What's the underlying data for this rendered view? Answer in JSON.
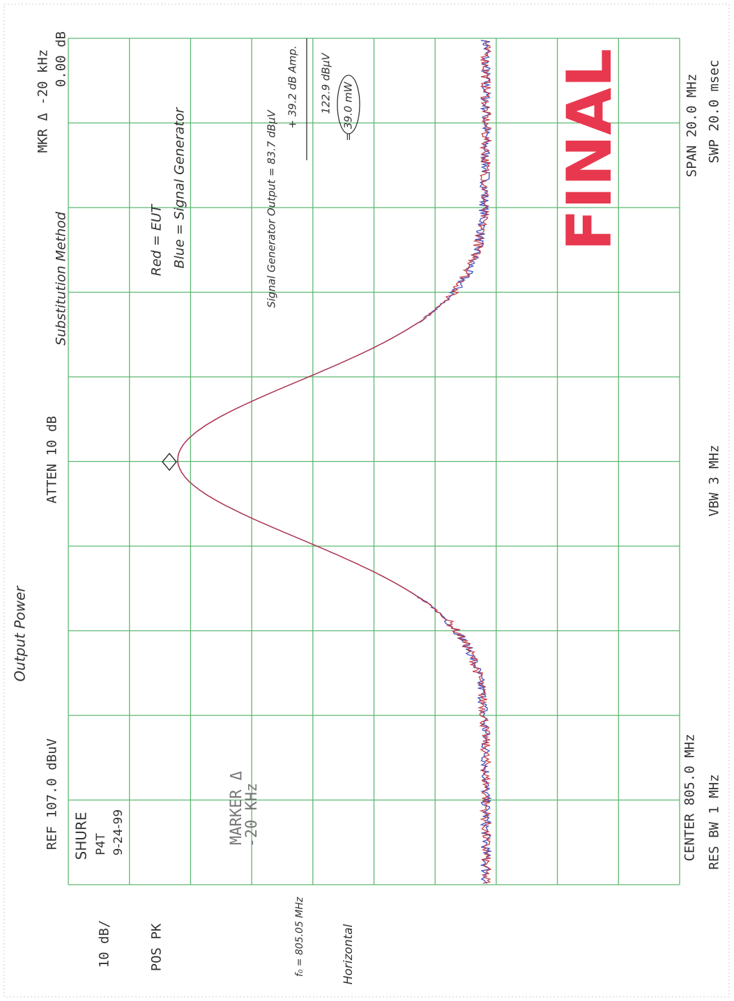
{
  "page_title": "Output Power",
  "instrument": {
    "ref": "REF 107.0 dBuV",
    "atten": "ATTEN 10 dB",
    "marker_readout": "MKR Δ -20 kHz",
    "marker_level": "0.00 dB",
    "scale": "10 dB/",
    "detector": "POS PK",
    "center": "CENTER 805.0 MHz",
    "res_bw": "RES BW 1 MHz",
    "vbw": "VBW 3 MHz",
    "span": "SPAN 20.0 MHz",
    "sweep": "SWP 20.0 msec",
    "marker_label": "MARKER Δ",
    "marker_value": "-20 KHz"
  },
  "notes": {
    "method": "Substitution Method",
    "device": [
      "SHURE",
      "P4T",
      "9-24-99"
    ],
    "frequency": "f₀ = 805.05 MHz",
    "polarization": "Horizontal",
    "legend": [
      "Red = EUT",
      "Blue = Signal Generator"
    ],
    "calculation": [
      "Signal Generator Output = 83.7 dBμV",
      "+ 39.2 dB Amp.",
      "122.9 dBμV",
      "= 39.0 mW"
    ],
    "stamp": "FINAL"
  }
}
